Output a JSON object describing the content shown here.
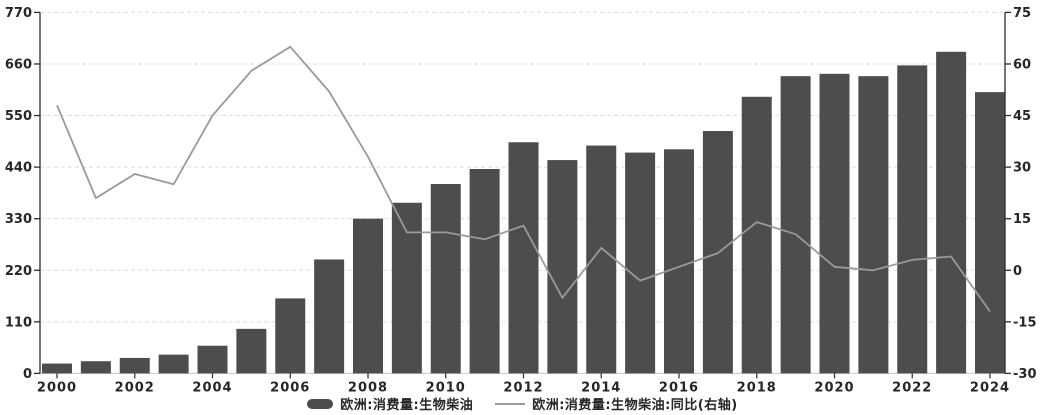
{
  "chart_data": {
    "type": "bar",
    "title": "",
    "x": [
      2000,
      2001,
      2002,
      2003,
      2004,
      2005,
      2006,
      2007,
      2008,
      2009,
      2010,
      2011,
      2012,
      2013,
      2014,
      2015,
      2016,
      2017,
      2018,
      2019,
      2020,
      2021,
      2022,
      2023,
      2024
    ],
    "series": [
      {
        "name": "欧洲:消费量:生物柴油",
        "type": "bar",
        "axis": "left",
        "color": "#4d4d4d",
        "values": [
          21,
          26,
          33,
          40,
          59,
          95,
          160,
          243,
          330,
          364,
          404,
          436,
          493,
          455,
          486,
          471,
          478,
          517,
          590,
          634,
          639,
          634,
          657,
          686,
          600
        ]
      },
      {
        "name": "欧洲:消费量:生物柴油:同比(右轴)",
        "type": "line",
        "axis": "right",
        "color": "#9a9a9a",
        "values": [
          48,
          21,
          28,
          25,
          45,
          58,
          65,
          52,
          33,
          11,
          11,
          9,
          13,
          -8,
          6.5,
          -3,
          1,
          5,
          14,
          10.5,
          1,
          0,
          3,
          4,
          -12
        ]
      }
    ],
    "left_axis": {
      "min": 0,
      "max": 770,
      "ticks": [
        0,
        110,
        220,
        330,
        440,
        550,
        660,
        770
      ]
    },
    "right_axis": {
      "min": -30,
      "max": 75,
      "ticks": [
        -30,
        -15,
        0,
        15,
        30,
        45,
        60,
        75
      ]
    },
    "x_tick_labels": [
      "2000",
      "2002",
      "2004",
      "2006",
      "2008",
      "2010",
      "2012",
      "2014",
      "2016",
      "2018",
      "2020",
      "2022",
      "2024"
    ],
    "grid": "horizontal-dashed",
    "legend_position": "bottom-center"
  },
  "legend": {
    "bar_label": "欧洲:消费量:生物柴油",
    "line_label": "欧洲:消费量:生物柴油:同比(右轴)"
  },
  "colors": {
    "bar": "#4d4d4d",
    "line": "#9a9a9a",
    "grid": "#dedede",
    "axis": "#2b2b2b",
    "baseline": "#c4c4c4",
    "text": "#262626",
    "background": "#ffffff"
  }
}
